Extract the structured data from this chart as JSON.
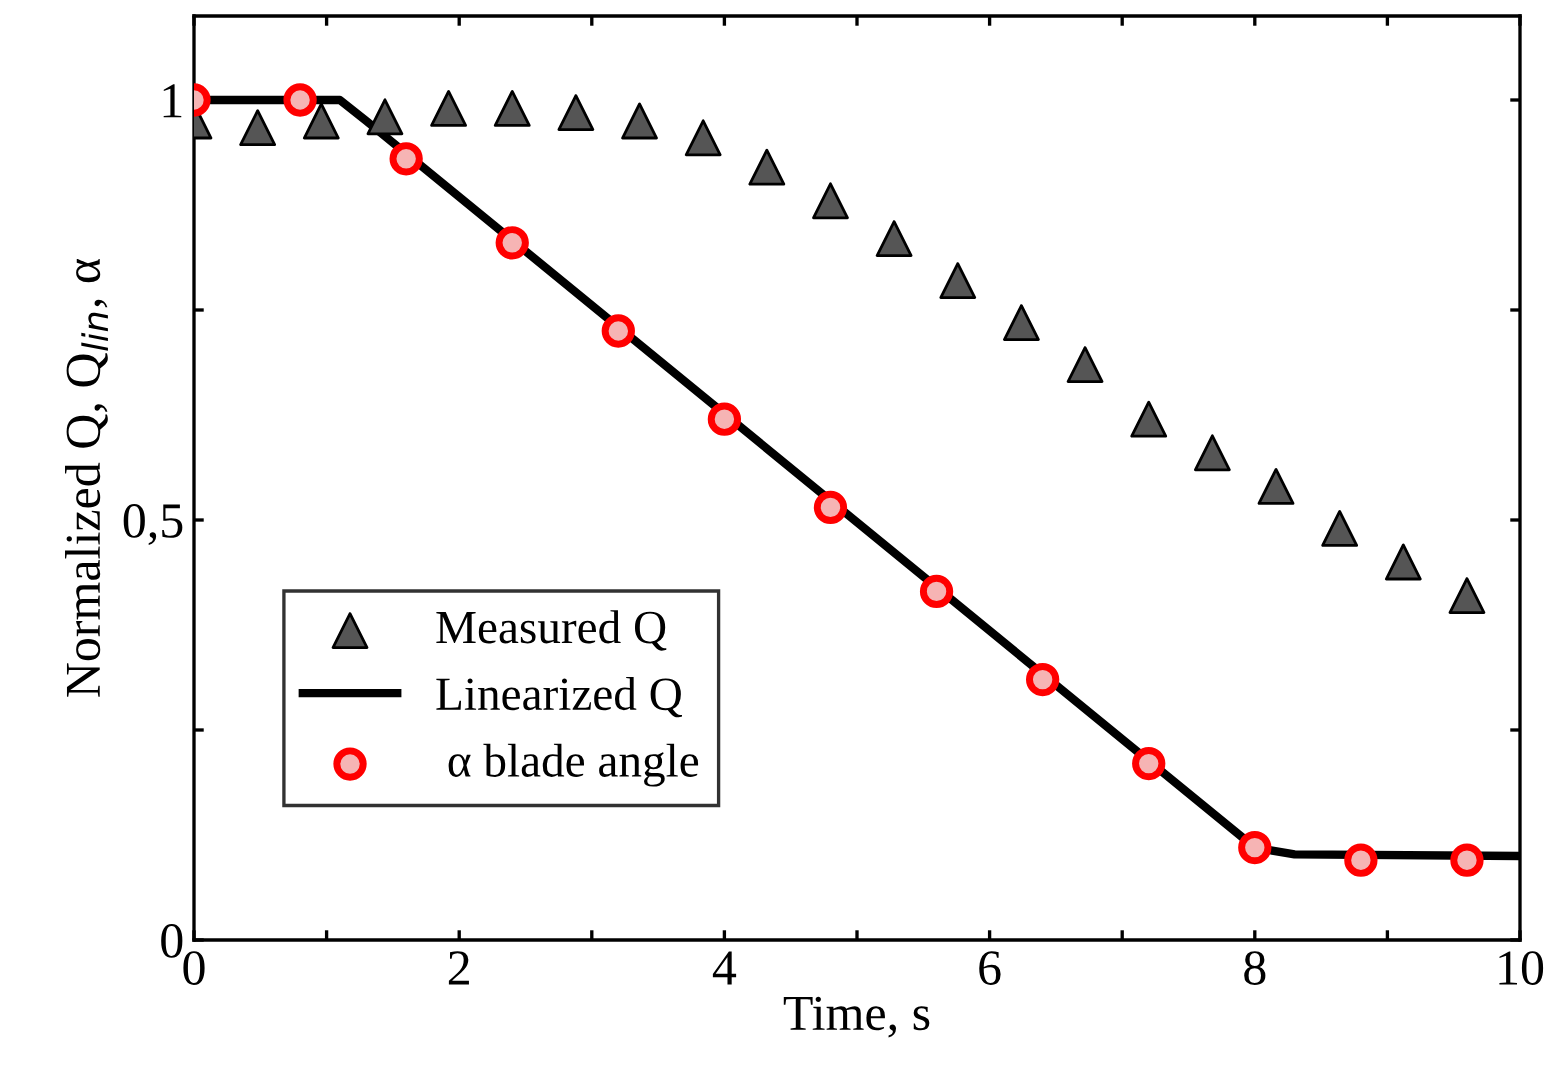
{
  "chart_data": {
    "type": "line",
    "xlabel": "Time, s",
    "ylabel": "Normalized Q, Q$_{lin}$, α",
    "xlim": [
      0,
      10
    ],
    "ylim": [
      0,
      1.1
    ],
    "xticks": [
      0,
      {
        "value": 1,
        "label": null
      },
      2,
      {
        "value": 3,
        "label": null
      },
      4,
      {
        "value": 5,
        "label": null
      },
      6,
      {
        "value": 7,
        "label": null
      },
      8,
      {
        "value": 9,
        "label": null
      },
      10
    ],
    "yticks": [
      0,
      {
        "value": 0.25,
        "label": null
      },
      {
        "value": 0.5,
        "label": "0,5"
      },
      {
        "value": 0.75,
        "label": null
      },
      1
    ],
    "grid": false,
    "legend": "bottom left",
    "series": [
      {
        "name": "Measured Q",
        "type": "scatter",
        "marker": "triangle",
        "color": "#555555",
        "x": [
          0,
          0.48,
          0.96,
          1.44,
          1.92,
          2.4,
          2.88,
          3.36,
          3.84,
          4.32,
          4.8,
          5.28,
          5.76,
          6.24,
          6.72,
          7.2,
          7.68,
          8.16,
          8.64,
          9.12,
          9.6
        ],
        "values": [
          0.975,
          0.967,
          0.975,
          0.98,
          0.99,
          0.99,
          0.985,
          0.975,
          0.955,
          0.92,
          0.88,
          0.835,
          0.785,
          0.735,
          0.685,
          0.62,
          0.58,
          0.54,
          0.49,
          0.45,
          0.41
        ]
      },
      {
        "name": "Linearized Q",
        "marker": "none",
        "line_style": "solid",
        "color": "#000000",
        "x": [
          0,
          1.1,
          1.3,
          8.0,
          8.3,
          10
        ],
        "values": [
          1,
          1,
          0.975,
          0.11,
          0.102,
          0.1
        ]
      },
      {
        "name": " α blade angle",
        "type": "scatter",
        "marker": "circle",
        "color": "#ff0000",
        "x": [
          0,
          0.8,
          1.6,
          2.4,
          3.2,
          4.0,
          4.8,
          5.6,
          6.4,
          7.2,
          8.0,
          8.8,
          9.6
        ],
        "values": [
          1,
          1,
          0.93,
          0.83,
          0.725,
          0.62,
          0.515,
          0.415,
          0.31,
          0.21,
          0.11,
          0.095,
          0.095
        ]
      }
    ]
  }
}
